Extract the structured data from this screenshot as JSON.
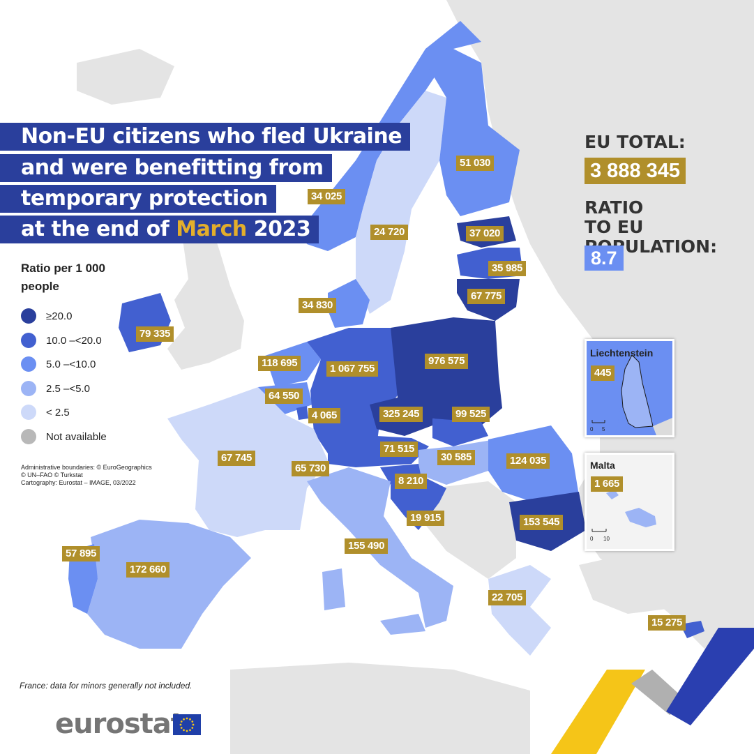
{
  "title": {
    "line1": "Non-EU citizens who fled Ukraine",
    "line2": "and were benefitting from",
    "line3": "temporary protection",
    "line4_prefix": "at the end of ",
    "line4_highlight": "March",
    "line4_suffix": " 2023"
  },
  "legend": {
    "title": "Ratio per 1 000 people",
    "items": [
      {
        "label": "≥20.0",
        "color": "#2a3f9c"
      },
      {
        "label": "10.0 –<20.0",
        "color": "#4260d0"
      },
      {
        "label": "5.0 –<10.0",
        "color": "#6b8ff2"
      },
      {
        "label": "2.5 –<5.0",
        "color": "#9cb4f5"
      },
      {
        "label": "< 2.5",
        "color": "#cdd9f9"
      },
      {
        "label": "Not available",
        "color": "#b8b8b8"
      }
    ]
  },
  "credits": {
    "line1": "Administrative boundaries: © EuroGeographics",
    "line2": "© UN–FAO © Turkstat",
    "line3": "Cartography: Eurostat – IMAGE, 03/2022"
  },
  "footnote": "France: data for minors generally not included.",
  "eu_total": {
    "heading": "EU TOTAL:",
    "value": "3 888 345"
  },
  "ratio": {
    "heading_line1": "RATIO",
    "heading_line2": "TO EU POPULATION:",
    "value": "8.7"
  },
  "insets": {
    "liechtenstein": {
      "name": "Liechtenstein",
      "value": "445",
      "scale_zero": "0",
      "scale_max": "5"
    },
    "malta": {
      "name": "Malta",
      "value": "1 665",
      "scale_zero": "0",
      "scale_max": "10"
    }
  },
  "countries": {
    "norway": "34 025",
    "sweden": "24 720",
    "finland": "51 030",
    "estonia": "37 020",
    "latvia": "35 985",
    "lithuania": "67 775",
    "denmark": "34 830",
    "ireland": "79 335",
    "netherlands": "118 695",
    "germany": "1 067 755",
    "poland": "976 575",
    "belgium": "64 550",
    "luxembourg": "4 065",
    "czechia": "325 245",
    "slovakia": "99 525",
    "austria": "71 515",
    "hungary": "30 585",
    "romania": "124 035",
    "france": "67 745",
    "switzerland": "65 730",
    "slovenia": "8 210",
    "croatia": "19 915",
    "bulgaria": "153 545",
    "italy": "155 490",
    "portugal": "57 895",
    "spain": "172 660",
    "greece": "22 705",
    "cyprus": "15 275"
  },
  "logo": {
    "text": "eurostat"
  }
}
